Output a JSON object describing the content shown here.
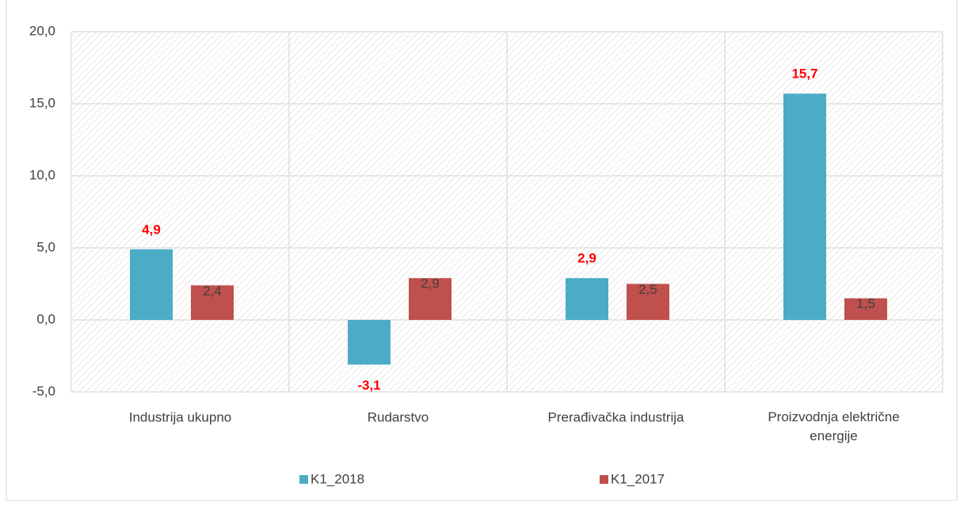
{
  "chart_data": {
    "type": "bar",
    "categories": [
      "Industrija ukupno",
      "Rudarstvo",
      "Prerađivačka industrija",
      "Proizvodnja električne energije"
    ],
    "series": [
      {
        "name": "K1_2018",
        "color": "#4bacc6",
        "values": [
          4.9,
          -3.1,
          2.9,
          15.7
        ],
        "value_labels": [
          "4,9",
          "-3,1",
          "2,9",
          "15,7"
        ]
      },
      {
        "name": "K1_2017",
        "color": "#c0504d",
        "values": [
          2.4,
          2.9,
          2.5,
          1.5
        ],
        "value_labels": [
          "2,4",
          "2,9",
          "2,5",
          "1,5"
        ]
      }
    ],
    "ylim": [
      -5,
      20
    ],
    "yticks": [
      {
        "value": -5,
        "label": "-5,0"
      },
      {
        "value": 0,
        "label": "0,0"
      },
      {
        "value": 5,
        "label": "5,0"
      },
      {
        "value": 10,
        "label": "10,0"
      },
      {
        "value": 15,
        "label": "15,0"
      },
      {
        "value": 20,
        "label": "20,0"
      }
    ],
    "grid": true,
    "legend": "bottom"
  }
}
